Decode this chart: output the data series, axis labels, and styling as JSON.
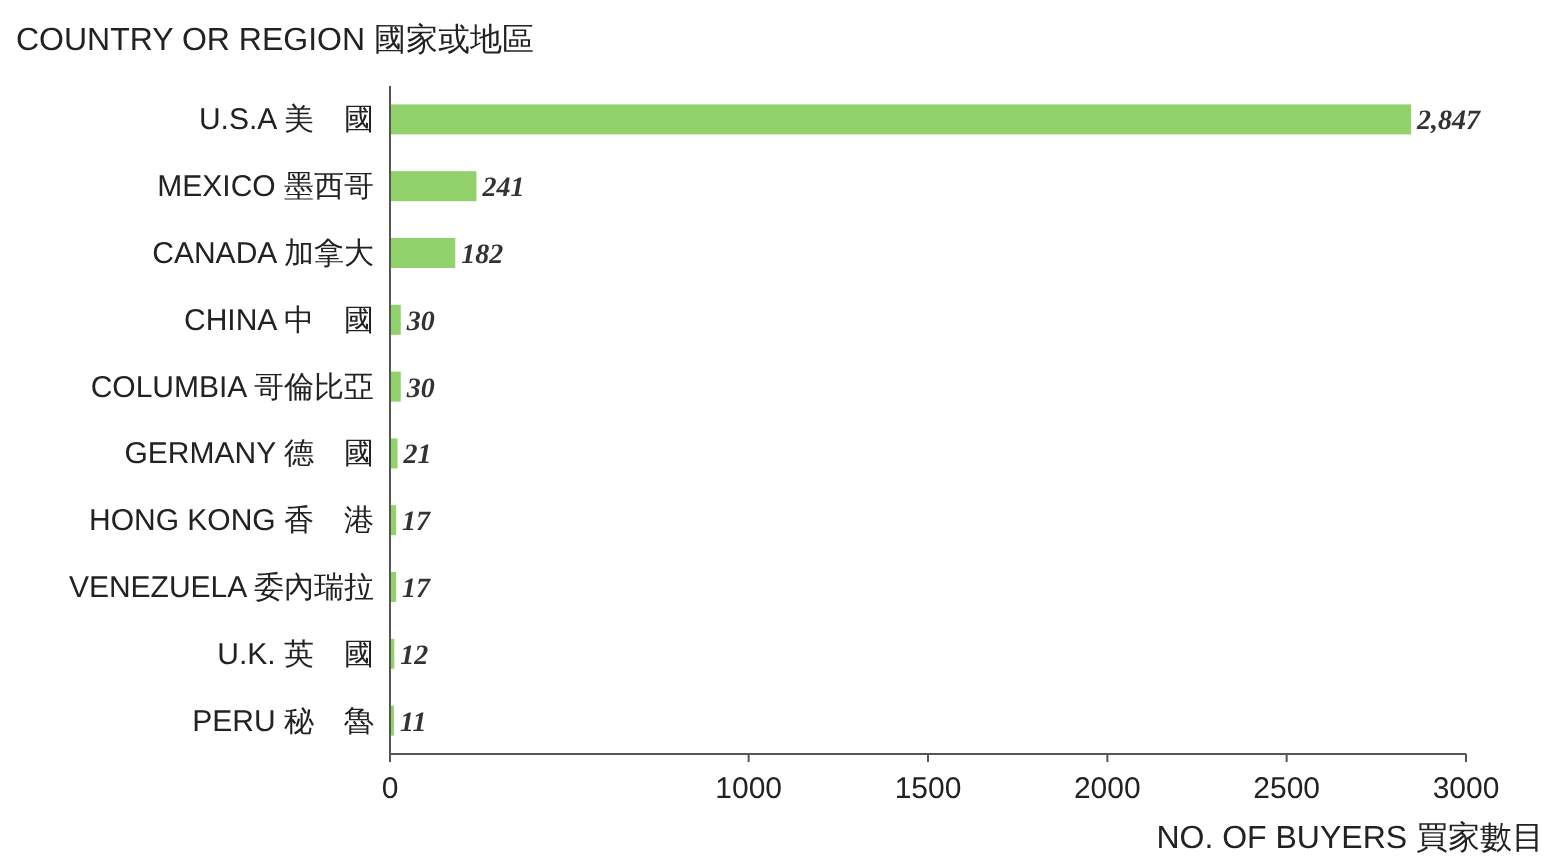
{
  "chart_data": {
    "type": "bar",
    "orientation": "horizontal",
    "ylabel": "COUNTRY OR REGION 國家或地區",
    "xlabel": "NO. OF BUYERS 買家數目",
    "categories": [
      "U.S.A 美　國",
      "MEXICO 墨西哥",
      "CANADA 加拿大",
      "CHINA 中　國",
      "COLUMBIA 哥倫比亞",
      "GERMANY 德　國",
      "HONG KONG 香　港",
      "VENEZUELA 委內瑞拉",
      "U.K. 英　國",
      "PERU 秘　魯"
    ],
    "values": [
      2847,
      241,
      182,
      30,
      30,
      21,
      17,
      17,
      12,
      11
    ],
    "color": "#92d26a",
    "xlim": [
      0,
      3000
    ],
    "xticks": [
      0,
      1000,
      1500,
      2000,
      2500,
      3000
    ],
    "value_labels": [
      "2,847",
      "241",
      "182",
      "30",
      "30",
      "21",
      "17",
      "17",
      "12",
      "11"
    ]
  }
}
